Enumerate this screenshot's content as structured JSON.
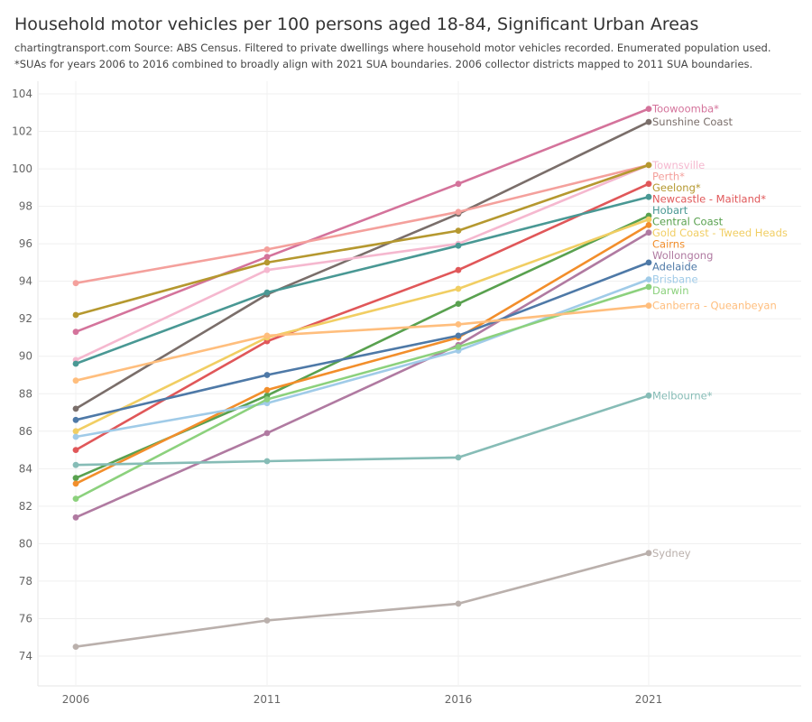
{
  "title": "Household motor vehicles per 100 persons aged 18-84, Significant Urban Areas",
  "subtitle1": "chartingtransport.com  Source: ABS Census. Filtered to private dwellings where household motor vehicles recorded. Enumerated population used.",
  "subtitle2": "*SUAs for years 2006 to 2016 combined to broadly align with 2021 SUA boundaries. 2006 collector districts mapped to 2011 SUA boundaries.",
  "chart_data": {
    "type": "line",
    "x": [
      "2006",
      "2011",
      "2016",
      "2021"
    ],
    "ylim": [
      73,
      105
    ],
    "yticks": [
      74,
      76,
      78,
      80,
      82,
      84,
      86,
      88,
      90,
      92,
      94,
      96,
      98,
      100,
      102,
      104
    ],
    "grid": true,
    "legend": "end-of-line labels",
    "series": [
      {
        "name": "Toowoomba*",
        "color": "#d4739b",
        "values": [
          91.3,
          95.3,
          99.2,
          103.2
        ]
      },
      {
        "name": "Sunshine Coast",
        "color": "#7a6e6a",
        "values": [
          87.2,
          93.3,
          97.6,
          102.5
        ]
      },
      {
        "name": "Townsville",
        "color": "#f5b8cf",
        "values": [
          89.8,
          94.6,
          96.0,
          100.2
        ]
      },
      {
        "name": "Perth*",
        "color": "#f4a09c",
        "values": [
          93.9,
          95.7,
          97.7,
          100.2
        ]
      },
      {
        "name": "Geelong*",
        "color": "#b5982f",
        "values": [
          92.2,
          95.0,
          96.7,
          100.2
        ]
      },
      {
        "name": "Newcastle - Maitland*",
        "color": "#e05759",
        "values": [
          85.0,
          90.8,
          94.6,
          99.2
        ]
      },
      {
        "name": "Hobart",
        "color": "#499894",
        "values": [
          89.6,
          93.4,
          95.9,
          98.5
        ]
      },
      {
        "name": "Central Coast",
        "color": "#59a14f",
        "values": [
          83.5,
          87.9,
          92.8,
          97.5
        ]
      },
      {
        "name": "Gold Coast - Tweed Heads",
        "color": "#f1ce63",
        "values": [
          86.0,
          91.0,
          93.6,
          97.3
        ]
      },
      {
        "name": "Cairns",
        "color": "#f28e2b",
        "values": [
          83.2,
          88.2,
          91.0,
          97.0
        ]
      },
      {
        "name": "Wollongong",
        "color": "#b07aa1",
        "values": [
          81.4,
          85.9,
          90.6,
          96.6
        ]
      },
      {
        "name": "Adelaide",
        "color": "#4e79a7",
        "values": [
          86.6,
          89.0,
          91.1,
          95.0
        ]
      },
      {
        "name": "Brisbane",
        "color": "#a0cbe8",
        "values": [
          85.7,
          87.5,
          90.3,
          94.1
        ]
      },
      {
        "name": "Darwin",
        "color": "#8cd17d",
        "values": [
          82.4,
          87.7,
          90.5,
          93.7
        ]
      },
      {
        "name": "Canberra - Queanbeyan",
        "color": "#ffbe7d",
        "values": [
          88.7,
          91.1,
          91.7,
          92.7
        ]
      },
      {
        "name": "Melbourne*",
        "color": "#86bcb6",
        "values": [
          84.2,
          84.4,
          84.6,
          87.9
        ]
      },
      {
        "name": "Sydney",
        "color": "#bab0ac",
        "values": [
          74.5,
          75.9,
          76.8,
          79.5
        ]
      }
    ]
  }
}
